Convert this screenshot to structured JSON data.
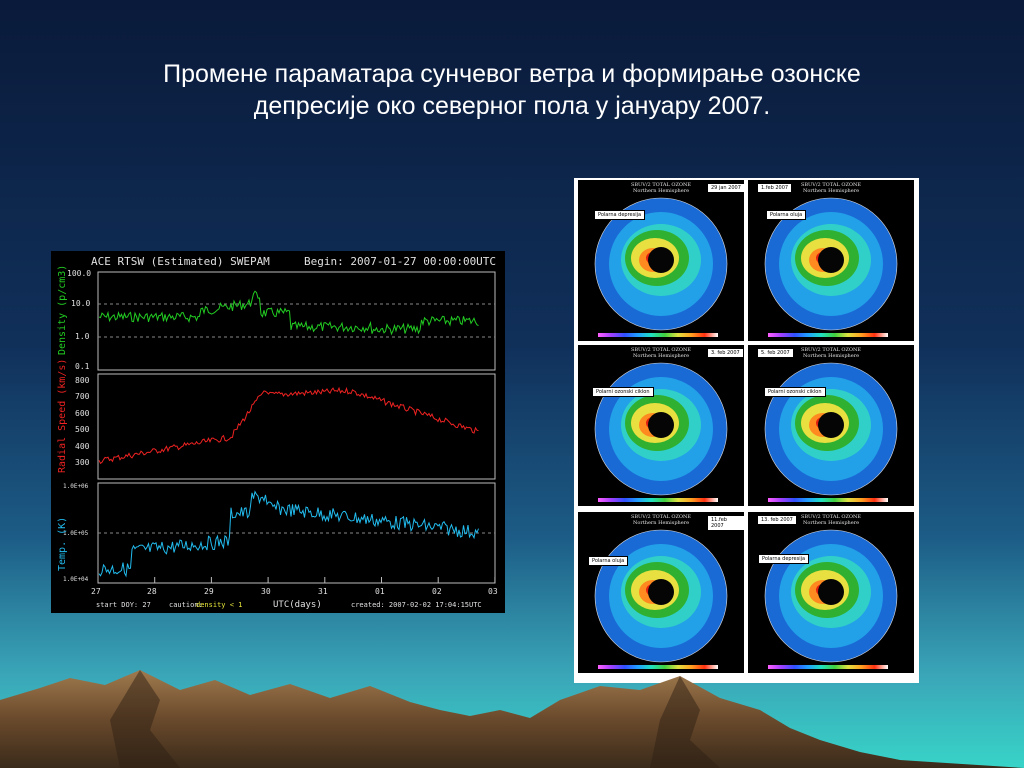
{
  "slide": {
    "title_line1": "Промене параматара сунчевог ветра  и формирање озонске",
    "title_line2": "депресије око северног пола у јануару 2007."
  },
  "ace_chart": {
    "header_left": "ACE RTSW (Estimated) SWEPAM",
    "header_right": "Begin: 2007-01-27 00:00:00UTC",
    "density_label": "Density  (p/cm3)",
    "speed_label": "Radial Speed  (km/s)",
    "temp_label": "Temp.  (K)",
    "density_ticks": [
      "100.0",
      "10.0",
      "1.0",
      "0.1"
    ],
    "speed_ticks": [
      "800",
      "700",
      "600",
      "500",
      "400",
      "300"
    ],
    "temp_ticks": [
      "1.0E+06",
      "1.0E+05",
      "1.0E+04"
    ],
    "x_ticks": [
      "27",
      "28",
      "29",
      "30",
      "31",
      "01",
      "02",
      "03"
    ],
    "x_label": "UTC(days)",
    "start_doy": "start DOY:  27",
    "caution_prefix": "caution:",
    "caution_text": "density < 1",
    "created": "created: 2007-02-02 17:04:15UTC",
    "colors": {
      "density": "#22cc22",
      "speed": "#ee2222",
      "temp": "#22bbee"
    }
  },
  "ozone_maps": {
    "cell_title": "SBUV/2 TOTAL OZONE",
    "cell_subtitle": "Northern Hemisphere",
    "cells": [
      {
        "date": "29 jan 2007",
        "callout": "Polarna depresija"
      },
      {
        "date": "1.feb 2007",
        "callout": "Polarna oluja"
      },
      {
        "date": "3. feb 2007",
        "callout": "Polarni ozonski ciklon"
      },
      {
        "date": "5. feb 2007",
        "callout": "Polarni ozonski ciklon"
      },
      {
        "date": "11.feb 2007",
        "callout": "Polarna oluja"
      },
      {
        "date": "13. feb 2007",
        "callout": "Polarna depresija"
      }
    ]
  }
}
